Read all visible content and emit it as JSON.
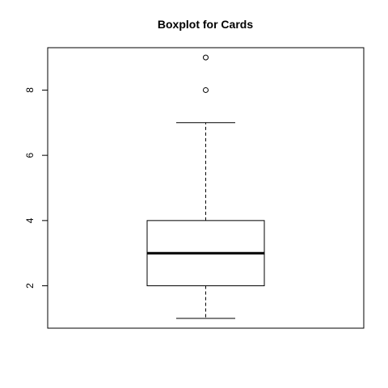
{
  "chart_data": {
    "type": "boxplot",
    "title": "Boxplot for  Cards",
    "xlabel": "",
    "ylabel": "",
    "ylim": [
      0.7,
      9.3
    ],
    "yticks": [
      2,
      4,
      6,
      8
    ],
    "grid": false,
    "box": {
      "whisker_low": 1,
      "q1": 2,
      "median": 3,
      "q3": 4,
      "whisker_high": 7,
      "outliers": [
        8,
        9
      ]
    }
  }
}
